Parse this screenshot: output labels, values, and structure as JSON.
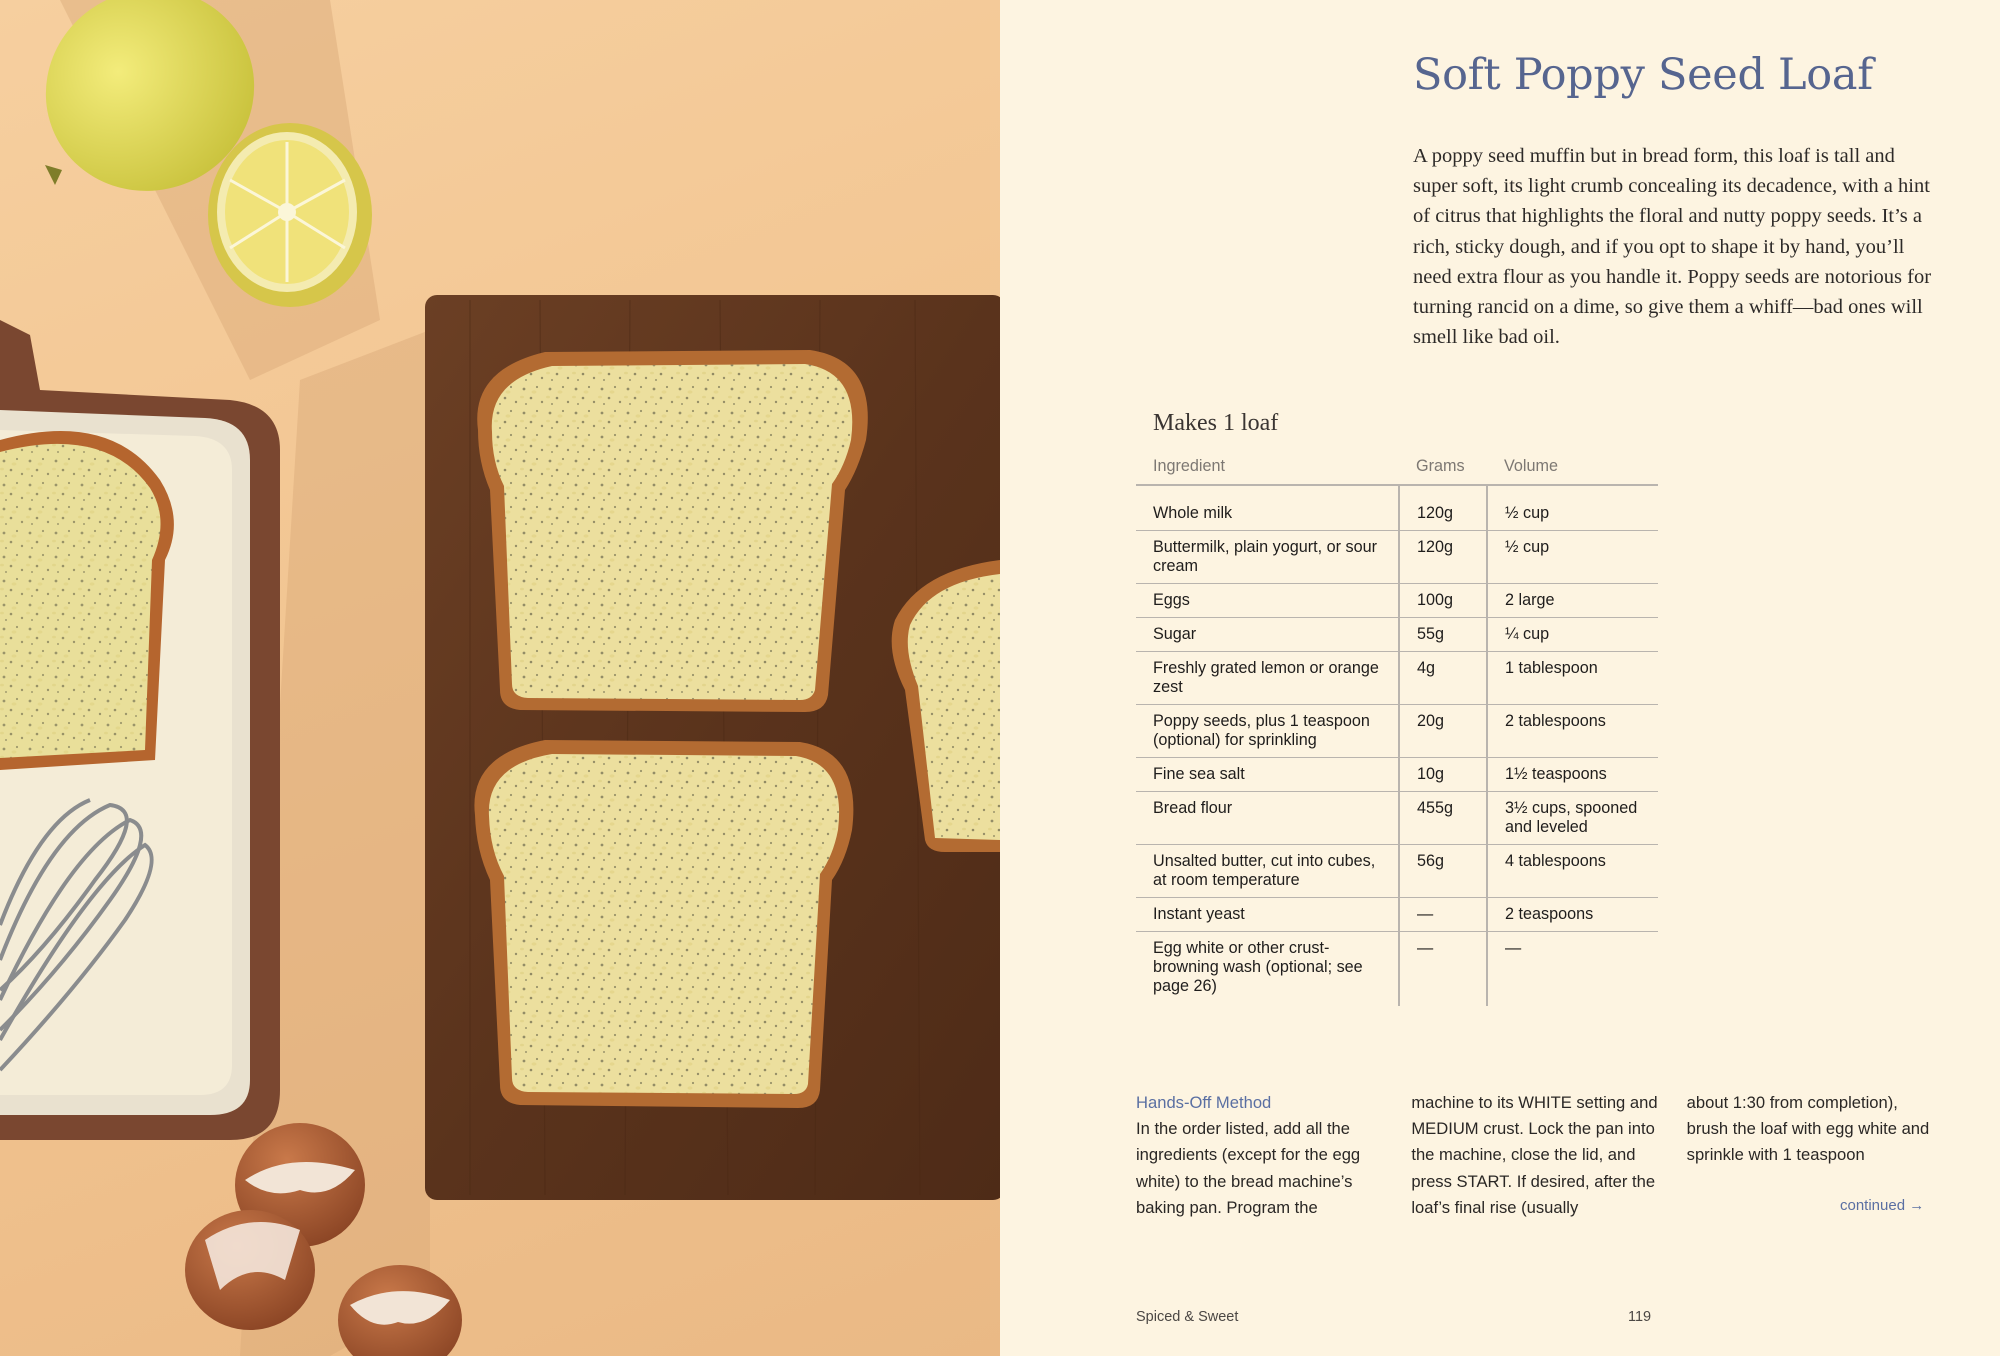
{
  "page": {
    "title": "Soft Poppy Seed Loaf",
    "intro": "A poppy seed muffin but in bread form, this loaf is tall and super soft, its light crumb concealing its decadence, with a hint of citrus that highlights the floral and nutty poppy seeds. It’s a rich, sticky dough, and if you opt to shape it by hand, you’ll need extra flour as you handle it. Poppy seeds are notorious for turning rancid on a dime, so give them a whiff—bad ones will smell like bad oil.",
    "yield": "Makes 1 loaf"
  },
  "ingredients": {
    "headers": [
      "Ingredient",
      "Grams",
      "Volume"
    ],
    "rows": [
      {
        "name": "Whole milk",
        "grams": "120g",
        "volume": "½ cup"
      },
      {
        "name": "Buttermilk, plain yogurt, or sour cream",
        "grams": "120g",
        "volume": "½ cup"
      },
      {
        "name": "Eggs",
        "grams": "100g",
        "volume": "2 large"
      },
      {
        "name": "Sugar",
        "grams": "55g",
        "volume": "¼ cup"
      },
      {
        "name": "Freshly grated lemon or orange zest",
        "grams": "4g",
        "volume": "1 tablespoon"
      },
      {
        "name": "Poppy seeds, plus 1 teaspoon (optional) for sprinkling",
        "grams": "20g",
        "volume": "2 tablespoons"
      },
      {
        "name": "Fine sea salt",
        "grams": "10g",
        "volume": "1½ teaspoons"
      },
      {
        "name": "Bread flour",
        "grams": "455g",
        "volume": "3½ cups, spooned and leveled"
      },
      {
        "name": "Unsalted butter, cut into cubes, at room temperature",
        "grams": "56g",
        "volume": "4 tablespoons"
      },
      {
        "name": "Instant yeast",
        "grams": "—",
        "volume": "2 teaspoons"
      },
      {
        "name": "Egg white or other crust-browning wash (optional; see page 26)",
        "grams": "—",
        "volume": "—"
      }
    ]
  },
  "method": {
    "heading": "Hands-Off Method",
    "col1": "In the order listed, add all the ingredients (except for the egg white) to the bread machine’s baking pan. Program the",
    "col2": "machine to its WHITE setting and MEDIUM crust. Lock the pan into the machine, close the lid, and press START. If desired, after the loaf’s final rise (usually",
    "col3": "about 1:30 from completion), brush the loaf with egg white and sprinkle with 1 teaspoon",
    "continued": "continued →"
  },
  "footer": {
    "book_title": "Spiced & Sweet",
    "page_number": "119"
  },
  "photo": {
    "subject": "bread-slices-photo"
  }
}
